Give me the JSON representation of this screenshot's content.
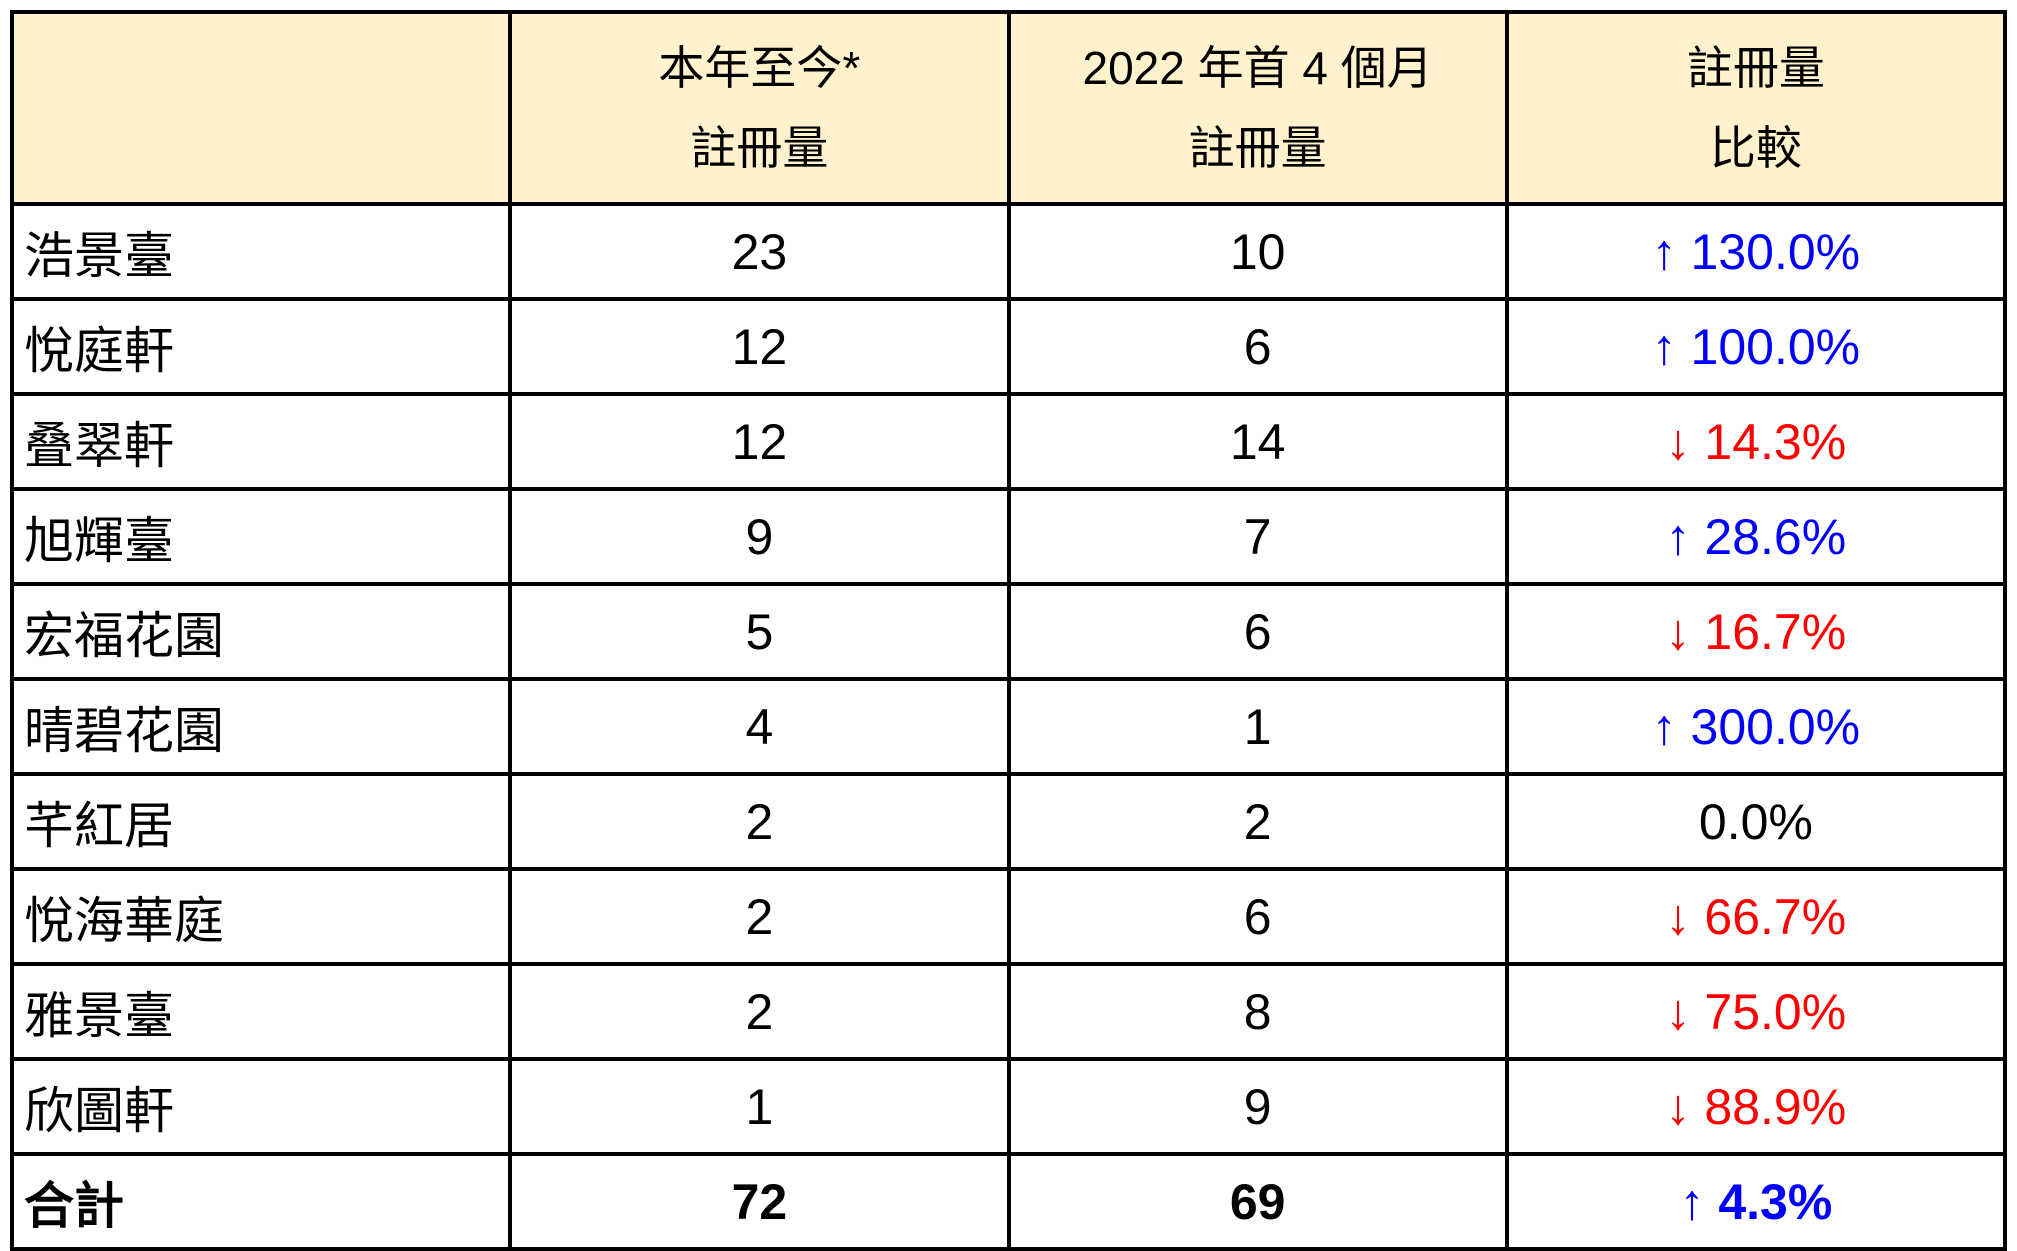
{
  "table": {
    "header": {
      "col0": "",
      "col1_line1": "本年至今*",
      "col1_line2": "註冊量",
      "col2_line1": "2022 年首 4 個月",
      "col2_line2": "註冊量",
      "col3_line1": "註冊量",
      "col3_line2": "比較"
    },
    "rows": [
      {
        "name": "浩景臺",
        "ytd": "23",
        "prev": "10",
        "change": "↑ 130.0%",
        "dir": "up",
        "bold": false
      },
      {
        "name": "悅庭軒",
        "ytd": "12",
        "prev": "6",
        "change": "↑ 100.0%",
        "dir": "up",
        "bold": false
      },
      {
        "name": "叠翠軒",
        "ytd": "12",
        "prev": "14",
        "change": "↓ 14.3%",
        "dir": "down",
        "bold": false
      },
      {
        "name": "旭輝臺",
        "ytd": "9",
        "prev": "7",
        "change": "↑ 28.6%",
        "dir": "up",
        "bold": false
      },
      {
        "name": "宏福花園",
        "ytd": "5",
        "prev": "6",
        "change": "↓ 16.7%",
        "dir": "down",
        "bold": false
      },
      {
        "name": "晴碧花園",
        "ytd": "4",
        "prev": "1",
        "change": "↑ 300.0%",
        "dir": "up",
        "bold": false
      },
      {
        "name": "芊紅居",
        "ytd": "2",
        "prev": "2",
        "change": "0.0%",
        "dir": "flat",
        "bold": false
      },
      {
        "name": "悅海華庭",
        "ytd": "2",
        "prev": "6",
        "change": "↓ 66.7%",
        "dir": "down",
        "bold": false
      },
      {
        "name": "雅景臺",
        "ytd": "2",
        "prev": "8",
        "change": "↓ 75.0%",
        "dir": "down",
        "bold": false
      },
      {
        "name": "欣圖軒",
        "ytd": "1",
        "prev": "9",
        "change": "↓ 88.9%",
        "dir": "down",
        "bold": false
      },
      {
        "name": "合計",
        "ytd": "72",
        "prev": "69",
        "change": "↑ 4.3%",
        "dir": "up",
        "bold": true
      }
    ]
  },
  "colors": {
    "up": "#0000FF",
    "down": "#FF0000",
    "flat": "#000000",
    "header_bg": "#FFF2CC",
    "border": "#000000"
  },
  "chart_data": {
    "type": "table",
    "columns": [
      "",
      "本年至今* 註冊量",
      "2022 年首 4 個月 註冊量",
      "註冊量 比較"
    ],
    "rows": [
      [
        "浩景臺",
        23,
        10,
        "+130.0%"
      ],
      [
        "悅庭軒",
        12,
        6,
        "+100.0%"
      ],
      [
        "叠翠軒",
        12,
        14,
        "-14.3%"
      ],
      [
        "旭輝臺",
        9,
        7,
        "+28.6%"
      ],
      [
        "宏福花園",
        5,
        6,
        "-16.7%"
      ],
      [
        "晴碧花園",
        4,
        1,
        "+300.0%"
      ],
      [
        "芊紅居",
        2,
        2,
        "0.0%"
      ],
      [
        "悅海華庭",
        2,
        6,
        "-66.7%"
      ],
      [
        "雅景臺",
        2,
        8,
        "-75.0%"
      ],
      [
        "欣圖軒",
        1,
        9,
        "-88.9%"
      ],
      [
        "合計",
        72,
        69,
        "+4.3%"
      ]
    ],
    "notes": "up changes rendered blue with ↑, down changes red with ↓, flat black"
  }
}
